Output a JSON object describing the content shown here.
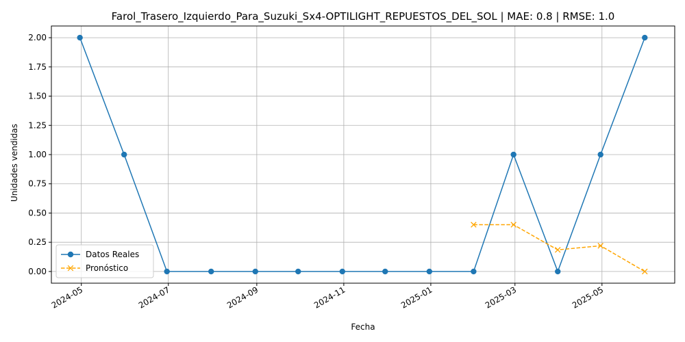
{
  "chart_data": {
    "type": "line",
    "title": "Farol_Trasero_Izquierdo_Para_Suzuki_Sx4-OPTILIGHT_REPUESTOS_DEL_SOL | MAE: 0.8 | RMSE: 1.0",
    "xlabel": "Fecha",
    "ylabel": "Unidades vendidas",
    "x_ticks": [
      "2024-05",
      "2024-07",
      "2024-09",
      "2024-11",
      "2025-01",
      "2025-03",
      "2025-05"
    ],
    "y_ticks": [
      "0.00",
      "0.25",
      "0.50",
      "0.75",
      "1.00",
      "1.25",
      "1.50",
      "1.75",
      "2.00"
    ],
    "ylim": [
      -0.1,
      2.1
    ],
    "xlim": [
      "2024-04-10",
      "2025-06-21"
    ],
    "grid": true,
    "legend_position": "lower-left",
    "series": [
      {
        "name": "Datos Reales",
        "color": "#1f77b4",
        "marker": "circle",
        "linestyle": "solid",
        "x": [
          "2024-04-30",
          "2024-05-31",
          "2024-06-30",
          "2024-07-31",
          "2024-08-31",
          "2024-09-30",
          "2024-10-31",
          "2024-11-30",
          "2024-12-31",
          "2025-01-31",
          "2025-02-28",
          "2025-03-31",
          "2025-04-30",
          "2025-05-31"
        ],
        "values": [
          2,
          1,
          0,
          0,
          0,
          0,
          0,
          0,
          0,
          0,
          1,
          0,
          1,
          2
        ]
      },
      {
        "name": "Pronóstico",
        "color": "#ffa500",
        "marker": "x",
        "linestyle": "dashed",
        "x": [
          "2025-01-31",
          "2025-02-28",
          "2025-03-31",
          "2025-04-30",
          "2025-05-31"
        ],
        "values": [
          0.4,
          0.4,
          0.185,
          0.22,
          0.0
        ]
      }
    ]
  }
}
